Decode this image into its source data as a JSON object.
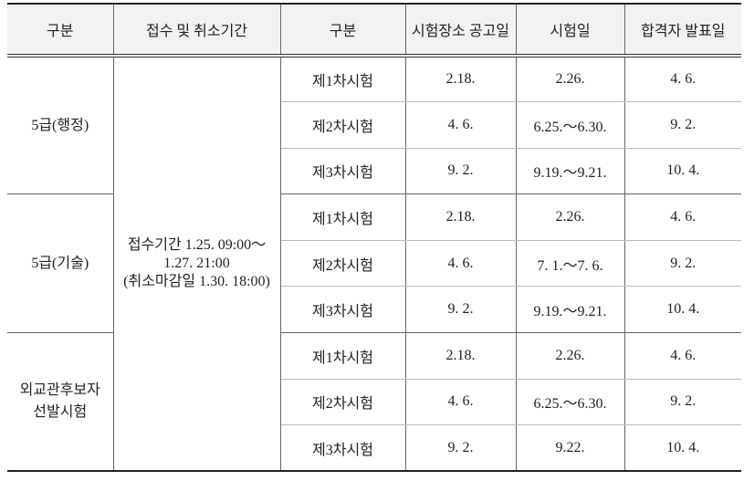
{
  "table": {
    "header": [
      "구분",
      "접수 및 취소기간",
      "구분",
      "시험장소 공고일",
      "시험일",
      "합격자 발표일"
    ],
    "period_lines": [
      "접수기간 1.25. 09:00～",
      "1.27. 21:00",
      "(취소마감일 1.30. 18:00)"
    ],
    "groups": [
      {
        "label_lines": [
          "5급(행정)"
        ],
        "rows": [
          [
            "제1차시험",
            "2.18.",
            "2.26.",
            "4. 6."
          ],
          [
            "제2차시험",
            "4. 6.",
            "6.25.～6.30.",
            "9. 2."
          ],
          [
            "제3차시험",
            "9. 2.",
            "9.19.～9.21.",
            "10. 4."
          ]
        ]
      },
      {
        "label_lines": [
          "5급(기술)"
        ],
        "rows": [
          [
            "제1차시험",
            "2.18.",
            "2.26.",
            "4. 6."
          ],
          [
            "제2차시험",
            "4. 6.",
            "7. 1.～7. 6.",
            "9. 2."
          ],
          [
            "제3차시험",
            "9. 2.",
            "9.19.～9.21.",
            "10. 4."
          ]
        ]
      },
      {
        "label_lines": [
          "외교관후보자",
          "선발시험"
        ],
        "rows": [
          [
            "제1차시험",
            "2.18.",
            "2.26.",
            "4. 6."
          ],
          [
            "제2차시험",
            "4. 6.",
            "6.25.～6.30.",
            "9. 2."
          ],
          [
            "제3차시험",
            "9. 2.",
            "9.22.",
            "10. 4."
          ]
        ]
      }
    ]
  }
}
